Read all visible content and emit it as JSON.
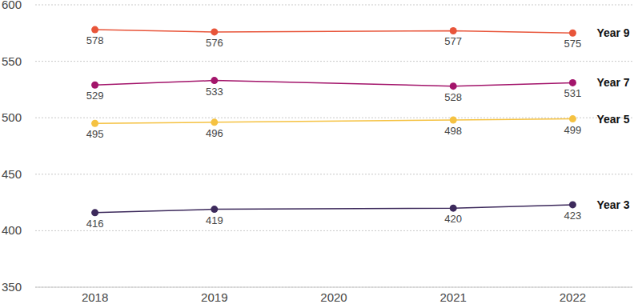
{
  "chart_data": {
    "type": "line",
    "x": [
      2018,
      2019,
      2021,
      2022
    ],
    "xlim": [
      2017.5,
      2022.5
    ],
    "xticks": [
      2018,
      2019,
      2020,
      2021,
      2022
    ],
    "ylim": [
      350,
      600
    ],
    "yticks": [
      350,
      400,
      450,
      500,
      550,
      600
    ],
    "grid": true,
    "data_labels": true,
    "marker": "circle",
    "series": [
      {
        "name": "Year 9",
        "color": "#e8553a",
        "values": [
          578,
          576,
          577,
          575
        ]
      },
      {
        "name": "Year 7",
        "color": "#a3156b",
        "values": [
          529,
          533,
          528,
          531
        ]
      },
      {
        "name": "Year 5",
        "color": "#f5c242",
        "values": [
          495,
          496,
          498,
          499
        ]
      },
      {
        "name": "Year 3",
        "color": "#3d2a5c",
        "values": [
          416,
          419,
          420,
          423
        ]
      }
    ]
  }
}
